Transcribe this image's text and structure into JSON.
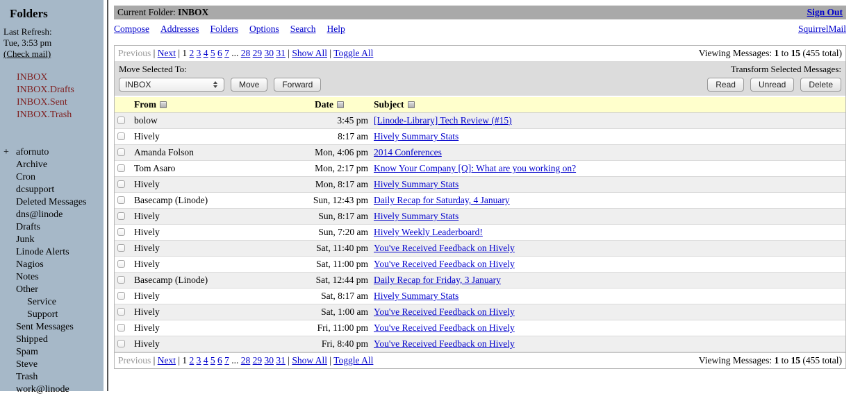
{
  "colors": {
    "sidebar_bg": "#a6b8c8",
    "titlebar_bg": "#a9a9a9",
    "toolbar_bg": "#dcdcdc",
    "header_bg": "#ffffcc",
    "row_alt": "#efefef",
    "link": "#0000cc",
    "folder_special": "#7f1f1f",
    "dim": "#999999"
  },
  "sidebar": {
    "title": "Folders",
    "last_refresh_label": "Last Refresh:",
    "last_refresh_time": "Tue, 3:53 pm",
    "check_mail_label": "(Check mail)",
    "special_folders": [
      "INBOX",
      "INBOX.Drafts",
      "INBOX.Sent",
      "INBOX.Trash"
    ],
    "folders": [
      {
        "label": "afornuto",
        "prefix": "+",
        "indent": 0
      },
      {
        "label": "Archive",
        "indent": 0
      },
      {
        "label": "Cron",
        "indent": 0
      },
      {
        "label": "dcsupport",
        "indent": 0
      },
      {
        "label": "Deleted Messages",
        "indent": 0
      },
      {
        "label": "dns@linode",
        "indent": 0
      },
      {
        "label": "Drafts",
        "indent": 0
      },
      {
        "label": "Junk",
        "indent": 0
      },
      {
        "label": "Linode Alerts",
        "indent": 0
      },
      {
        "label": "Nagios",
        "indent": 0
      },
      {
        "label": "Notes",
        "indent": 0
      },
      {
        "label": "Other",
        "indent": 0
      },
      {
        "label": "Service",
        "indent": 1
      },
      {
        "label": "Support",
        "indent": 1
      },
      {
        "label": "Sent Messages",
        "indent": 0
      },
      {
        "label": "Shipped",
        "indent": 0
      },
      {
        "label": "Spam",
        "indent": 0
      },
      {
        "label": "Steve",
        "indent": 0
      },
      {
        "label": "Trash",
        "indent": 0
      },
      {
        "label": "work@linode",
        "indent": 0
      }
    ]
  },
  "header": {
    "current_folder_label": "Current Folder:",
    "current_folder_name": "INBOX",
    "sign_out": "Sign Out",
    "menu": [
      "Compose",
      "Addresses",
      "Folders",
      "Options",
      "Search",
      "Help"
    ],
    "brand": "SquirrelMail"
  },
  "pagination": {
    "previous": "Previous",
    "next": "Next",
    "separator": "|",
    "current_page": "1",
    "pages_left": [
      "2",
      "3",
      "4",
      "5",
      "6",
      "7"
    ],
    "ellipsis": "...",
    "pages_right": [
      "28",
      "29",
      "30",
      "31"
    ],
    "show_all": "Show All",
    "toggle_all": "Toggle All",
    "viewing_prefix": "Viewing Messages:",
    "from": "1",
    "to_word": "to",
    "to": "15",
    "total_suffix": "(455 total)"
  },
  "toolbar": {
    "move_label": "Move Selected To:",
    "folder_select_value": "INBOX",
    "move_button": "Move",
    "forward_button": "Forward",
    "transform_label": "Transform Selected Messages:",
    "read_button": "Read",
    "unread_button": "Unread",
    "delete_button": "Delete"
  },
  "table": {
    "columns": [
      "From",
      "Date",
      "Subject"
    ],
    "rows": [
      {
        "from": "bolow",
        "date": "3:45 pm",
        "subject": "[Linode-Library] Tech Review (#15)"
      },
      {
        "from": "Hively",
        "date": "8:17 am",
        "subject": "Hively Summary Stats"
      },
      {
        "from": "Amanda Folson",
        "date": "Mon, 4:06 pm",
        "subject": "2014 Conferences"
      },
      {
        "from": "Tom Asaro",
        "date": "Mon, 2:17 pm",
        "subject": "Know Your Company [Q]: What are you working on?"
      },
      {
        "from": "Hively",
        "date": "Mon, 8:17 am",
        "subject": "Hively Summary Stats"
      },
      {
        "from": "Basecamp (Linode)",
        "date": "Sun, 12:43 pm",
        "subject": "Daily Recap for Saturday, 4 January"
      },
      {
        "from": "Hively",
        "date": "Sun, 8:17 am",
        "subject": "Hively Summary Stats"
      },
      {
        "from": "Hively",
        "date": "Sun, 7:20 am",
        "subject": "Hively Weekly Leaderboard!"
      },
      {
        "from": "Hively",
        "date": "Sat, 11:40 pm",
        "subject": "You've Received Feedback on Hively"
      },
      {
        "from": "Hively",
        "date": "Sat, 11:00 pm",
        "subject": "You've Received Feedback on Hively"
      },
      {
        "from": "Basecamp (Linode)",
        "date": "Sat, 12:44 pm",
        "subject": "Daily Recap for Friday, 3 January"
      },
      {
        "from": "Hively",
        "date": "Sat, 8:17 am",
        "subject": "Hively Summary Stats"
      },
      {
        "from": "Hively",
        "date": "Sat, 1:00 am",
        "subject": "You've Received Feedback on Hively"
      },
      {
        "from": "Hively",
        "date": "Fri, 11:00 pm",
        "subject": "You've Received Feedback on Hively"
      },
      {
        "from": "Hively",
        "date": "Fri, 8:40 pm",
        "subject": "You've Received Feedback on Hively"
      }
    ]
  }
}
